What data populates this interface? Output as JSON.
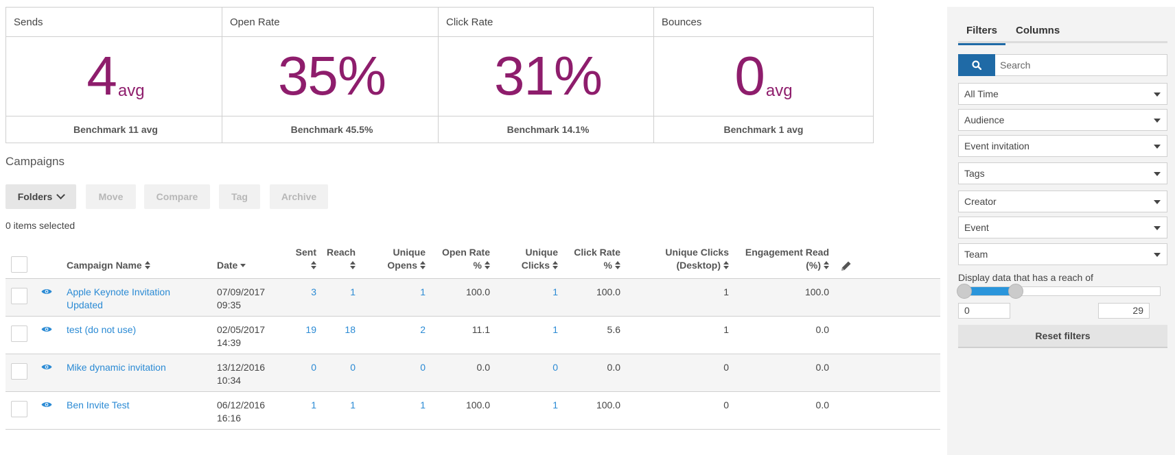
{
  "stats": [
    {
      "title": "Sends",
      "value": "4",
      "unit": "avg",
      "benchmark": "Benchmark 11 avg"
    },
    {
      "title": "Open Rate",
      "value": "35%",
      "unit": "",
      "benchmark": "Benchmark 45.5%"
    },
    {
      "title": "Click Rate",
      "value": "31%",
      "unit": "",
      "benchmark": "Benchmark 14.1%"
    },
    {
      "title": "Bounces",
      "value": "0",
      "unit": "avg",
      "benchmark": "Benchmark 1 avg"
    }
  ],
  "section_title": "Campaigns",
  "toolbar": {
    "folders": "Folders",
    "move": "Move",
    "compare": "Compare",
    "tag": "Tag",
    "archive": "Archive"
  },
  "selection_status": "0 items selected",
  "table": {
    "headers": {
      "campaign_name": "Campaign Name",
      "date": "Date",
      "sent": "Sent",
      "reach": "Reach",
      "unique_opens_1": "Unique",
      "unique_opens_2": "Opens",
      "open_rate_1": "Open Rate",
      "open_rate_2": "%",
      "unique_clicks_1": "Unique",
      "unique_clicks_2": "Clicks",
      "click_rate_1": "Click Rate",
      "click_rate_2": "%",
      "unique_clicks_desktop_1": "Unique Clicks",
      "unique_clicks_desktop_2": "(Desktop)",
      "engagement_1": "Engagement Read",
      "engagement_2": "(%)"
    },
    "rows": [
      {
        "name_1": "Apple Keynote Invitation",
        "name_2": "Updated",
        "date_1": "07/09/2017",
        "date_2": "09:35",
        "sent": "3",
        "reach": "1",
        "unique_opens": "1",
        "open_rate": "100.0",
        "unique_clicks": "1",
        "click_rate": "100.0",
        "unique_clicks_desktop": "1",
        "engagement": "100.0"
      },
      {
        "name_1": "test (do not use)",
        "name_2": "",
        "date_1": "02/05/2017",
        "date_2": "14:39",
        "sent": "19",
        "reach": "18",
        "unique_opens": "2",
        "open_rate": "11.1",
        "unique_clicks": "1",
        "click_rate": "5.6",
        "unique_clicks_desktop": "1",
        "engagement": "0.0"
      },
      {
        "name_1": "Mike dynamic invitation",
        "name_2": "",
        "date_1": "13/12/2016",
        "date_2": "10:34",
        "sent": "0",
        "reach": "0",
        "unique_opens": "0",
        "open_rate": "0.0",
        "unique_clicks": "0",
        "click_rate": "0.0",
        "unique_clicks_desktop": "0",
        "engagement": "0.0"
      },
      {
        "name_1": "Ben Invite Test",
        "name_2": "",
        "date_1": "06/12/2016",
        "date_2": "16:16",
        "sent": "1",
        "reach": "1",
        "unique_opens": "1",
        "open_rate": "100.0",
        "unique_clicks": "1",
        "click_rate": "100.0",
        "unique_clicks_desktop": "0",
        "engagement": "0.0"
      }
    ]
  },
  "sidebar": {
    "tabs": [
      "Filters",
      "Columns"
    ],
    "search_placeholder": "Search",
    "filters": [
      "All Time",
      "Audience",
      "Event invitation",
      "Tags",
      "Creator",
      "Event",
      "Team"
    ],
    "reach_label": "Display data that has a reach of",
    "reach_min": "0",
    "reach_max": "29",
    "reset_label": "Reset filters"
  },
  "colors": {
    "stat_value": "#8e1d6c",
    "link": "#2a8ad4",
    "primary": "#1f6aa6",
    "slider": "#2a95db"
  }
}
